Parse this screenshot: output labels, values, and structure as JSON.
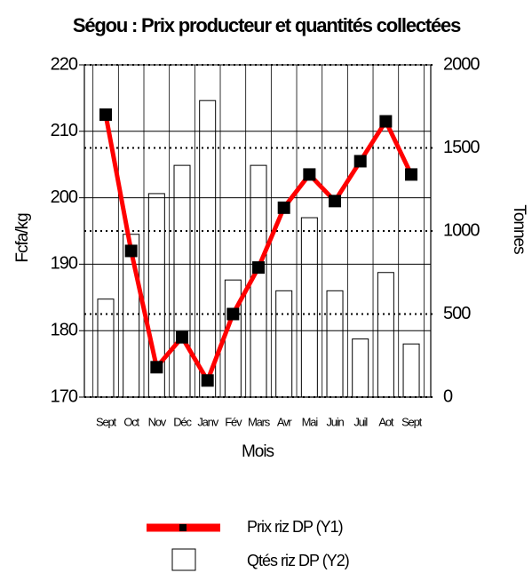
{
  "chart_data": {
    "type": "combo",
    "title": "Ségou : Prix producteur et quantités collectées",
    "xlabel": "Mois",
    "ylabel": "Fcfa/kg",
    "y2label": "Tonnes",
    "categories": [
      "Sept",
      "Oct",
      "Nov",
      "Déc",
      "Janv",
      "Fév",
      "Mars",
      "Avr",
      "Mai",
      "Juin",
      "Juil",
      "Aot",
      "Sept"
    ],
    "series": [
      {
        "name": "Prix riz DP (Y1)",
        "type": "line",
        "color": "#ff0000",
        "marker_color": "#000000",
        "axis": "y",
        "values": [
          212.5,
          192,
          174.5,
          179,
          172.5,
          182.5,
          189.5,
          198.5,
          203.5,
          199.5,
          205.5,
          211.5,
          203.5
        ]
      },
      {
        "name": "Qtés riz DP (Y2)",
        "type": "bar",
        "color": "#ffffff",
        "stroke": "#000000",
        "axis": "y2",
        "values": [
          590,
          980,
          1225,
          1395,
          1785,
          705,
          1395,
          640,
          1080,
          640,
          350,
          750,
          320
        ]
      }
    ],
    "ylim": [
      170,
      220
    ],
    "yticks": [
      170,
      180,
      190,
      200,
      210,
      220
    ],
    "y2lim": [
      0,
      2000
    ],
    "y2ticks": [
      0,
      500,
      1000,
      1500,
      2000
    ],
    "grid": true,
    "legend": "bottom"
  }
}
